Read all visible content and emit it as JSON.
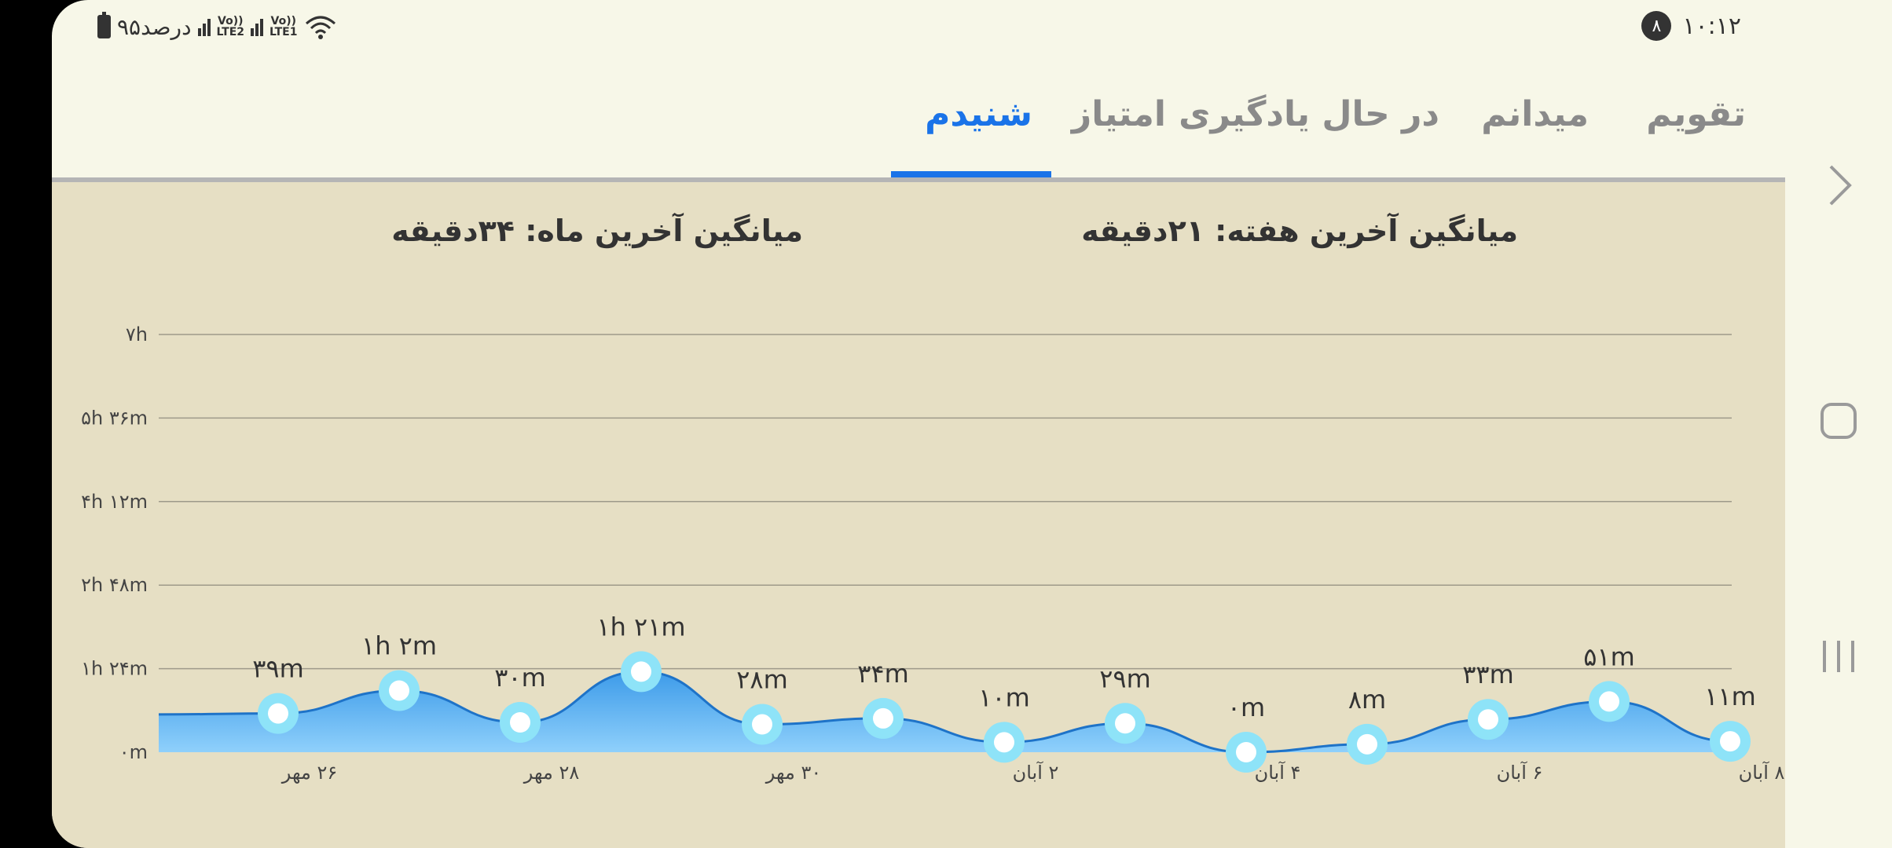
{
  "status": {
    "battery_text": "۹۵درصد",
    "volte1": "Vo)) LTE2",
    "volte2": "Vo)) LTE1",
    "time": "۱۰:۱۲",
    "notification_count": "۸"
  },
  "tabs": [
    {
      "label": "تقویم",
      "active": false
    },
    {
      "label": "میدانم",
      "active": false
    },
    {
      "label": "در حال یادگیری",
      "active": false
    },
    {
      "label": "امتیاز",
      "active": false
    },
    {
      "label": "شنیدم",
      "active": true
    }
  ],
  "summary": {
    "week_avg": "میانگین آخرین هفته: ۲۱دقیقه",
    "month_avg": "میانگین آخرین ماه: ۳۴دقیقه"
  },
  "colors": {
    "accent": "#1a73e8",
    "area_fill": "#64b5f6",
    "point_ring": "#8ee3f8"
  },
  "chart_data": {
    "type": "area",
    "y_ticks": [
      "۰m",
      "۱h ۲۴m",
      "۲h ۴۸m",
      "۴h ۱۲m",
      "۵h ۳۶m",
      "۷h"
    ],
    "ylim": [
      0,
      420
    ],
    "x_labels": [
      "۲۶ مهر",
      "۲۸ مهر",
      "۳۰ مهر",
      "۲ آبان",
      "۴ آبان",
      "۶ آبان",
      "۸ آبان"
    ],
    "points": [
      {
        "label": "۳۹m",
        "value": 39
      },
      {
        "label": "۱h ۲m",
        "value": 62
      },
      {
        "label": "۳۰m",
        "value": 30
      },
      {
        "label": "۱h ۲۱m",
        "value": 81
      },
      {
        "label": "۲۸m",
        "value": 28
      },
      {
        "label": "۳۴m",
        "value": 34
      },
      {
        "label": "۱۰m",
        "value": 10
      },
      {
        "label": "۲۹m",
        "value": 29
      },
      {
        "label": "۰m",
        "value": 0
      },
      {
        "label": "۸m",
        "value": 8
      },
      {
        "label": "۳۳m",
        "value": 33
      },
      {
        "label": "۵۱m",
        "value": 51
      },
      {
        "label": "۱۱m",
        "value": 11
      }
    ],
    "start_value": 38,
    "grid": true
  }
}
